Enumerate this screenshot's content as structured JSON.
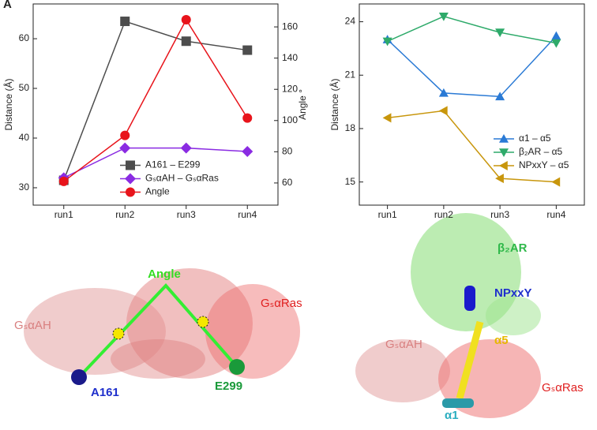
{
  "panel_label": "A",
  "chart_data": [
    {
      "type": "line",
      "categories": [
        "run1",
        "run2",
        "run3",
        "run4"
      ],
      "ylabel": "Distance (Å)",
      "y2label": "Angle °",
      "ylim": [
        26.5,
        67
      ],
      "yticks": [
        30,
        40,
        50,
        60
      ],
      "y2lim": [
        45.8,
        174.7
      ],
      "y2ticks": [
        60,
        80,
        100,
        120,
        140,
        160
      ],
      "legend": "lower right",
      "series": [
        {
          "name": "A161 – E299",
          "color": "#4d4d4d",
          "marker": "square",
          "values": [
            31.5,
            63.5,
            59.5,
            57.7
          ]
        },
        {
          "name": "GₛαAH – GₛαRas",
          "color": "#8a2be2",
          "marker": "diamond",
          "values": [
            32,
            38,
            38,
            37.3
          ]
        },
        {
          "name": "Angle",
          "color": "#e8141b",
          "marker": "circle",
          "axis": "y2",
          "values": [
            61,
            90.5,
            164.6,
            101.6
          ]
        }
      ]
    },
    {
      "type": "line",
      "categories": [
        "run1",
        "run2",
        "run3",
        "run4"
      ],
      "ylabel": "Distance (Å)",
      "ylim": [
        13.7,
        25.0
      ],
      "yticks": [
        15,
        18,
        21,
        24
      ],
      "legend": "right",
      "series": [
        {
          "name": "α1 – α5",
          "color": "#2a7ad5",
          "marker": "triangle-up",
          "values": [
            23.0,
            20.0,
            19.8,
            23.2
          ]
        },
        {
          "name": "β₂AR – α5",
          "color": "#2eaa6a",
          "marker": "triangle-down",
          "values": [
            22.9,
            24.3,
            23.4,
            22.8
          ]
        },
        {
          "name": "NPxxY – α5",
          "color": "#c8960c",
          "marker": "triangle-left",
          "values": [
            18.6,
            19.0,
            15.2,
            15.0
          ]
        }
      ]
    }
  ],
  "structures": [
    {
      "labels": {
        "angle": "Angle",
        "left_domain": "GₛαAH",
        "right_domain": "GₛαRas",
        "res1": "A161",
        "res2": "E299"
      }
    },
    {
      "labels": {
        "receptor": "β₂AR",
        "motif": "NPxxY",
        "helix5": "α5",
        "left_domain": "GₛαAH",
        "right_domain": "GₛαRas",
        "helix1": "α1"
      }
    }
  ]
}
